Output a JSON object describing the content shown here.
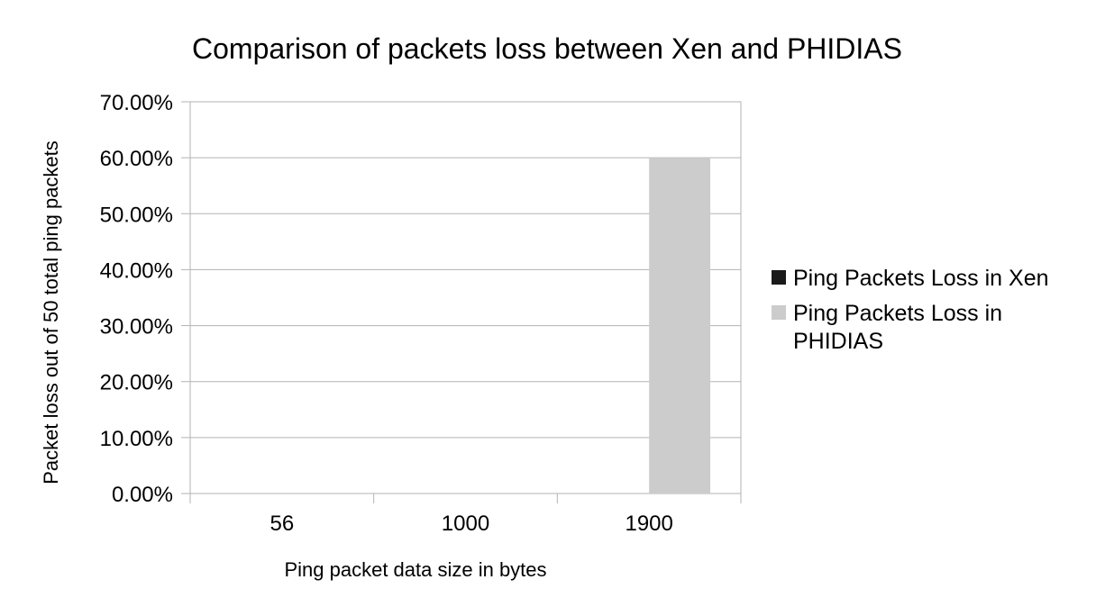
{
  "chart_data": {
    "type": "bar",
    "title": "Comparison of packets loss between Xen and PHIDIAS",
    "xlabel": "Ping packet data size in bytes",
    "ylabel": "Packet loss out of 50 total ping packets",
    "categories": [
      "56",
      "1000",
      "1900"
    ],
    "series": [
      {
        "name": "Ping Packets Loss in Xen",
        "color": "#1a1a1a",
        "values": [
          0,
          0,
          0
        ]
      },
      {
        "name": "Ping Packets Loss in PHIDIAS",
        "color": "#cccccc",
        "values": [
          0,
          0,
          0.6
        ]
      }
    ],
    "ylim": [
      0,
      0.7
    ],
    "y_ticks": [
      0,
      0.1,
      0.2,
      0.3,
      0.4,
      0.5,
      0.6,
      0.7
    ],
    "y_tick_labels": [
      "0.00%",
      "10.00%",
      "20.00%",
      "30.00%",
      "40.00%",
      "50.00%",
      "60.00%",
      "70.00%"
    ],
    "grid": true,
    "legend": {
      "position": "right",
      "lines": [
        [
          "Ping Packets Loss in Xen"
        ],
        [
          "Ping Packets Loss in",
          "PHIDIAS"
        ]
      ]
    }
  }
}
